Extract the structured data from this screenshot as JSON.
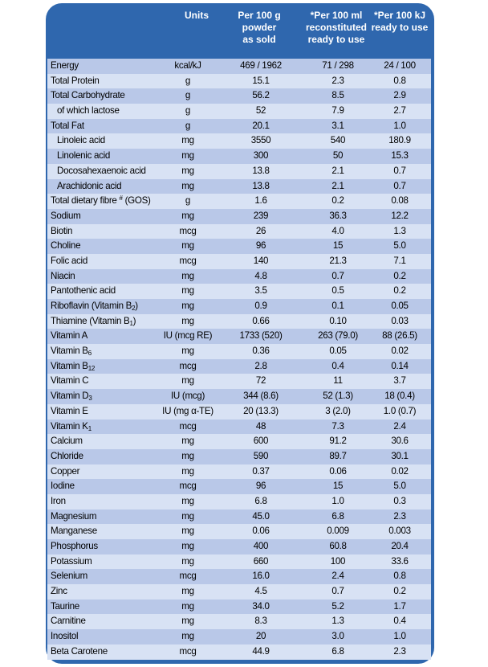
{
  "header": {
    "units": "Units",
    "col1": "Per 100 g\npowder\nas sold",
    "col2": "*Per 100 ml\nreconstituted\nready to use",
    "col3": "*Per 100 kJ\nready to use"
  },
  "rows": [
    {
      "name": "Energy",
      "unit": "kcal/kJ",
      "v1": "469 / 1962",
      "v2": "71 / 298",
      "v3": "24 / 100"
    },
    {
      "name": "Total Protein",
      "unit": "g",
      "v1": "15.1",
      "v2": "2.3",
      "v3": "0.8"
    },
    {
      "name": "Total Carbohydrate",
      "unit": "g",
      "v1": "56.2",
      "v2": "8.5",
      "v3": "2.9"
    },
    {
      "name": "of which lactose",
      "unit": "g",
      "v1": "52",
      "v2": "7.9",
      "v3": "2.7",
      "indent": true
    },
    {
      "name": "Total Fat",
      "unit": "g",
      "v1": "20.1",
      "v2": "3.1",
      "v3": "1.0"
    },
    {
      "name": "Linoleic acid",
      "unit": "mg",
      "v1": "3550",
      "v2": "540",
      "v3": "180.9",
      "indent": true
    },
    {
      "name": "Linolenic acid",
      "unit": "mg",
      "v1": "300",
      "v2": "50",
      "v3": "15.3",
      "indent": true
    },
    {
      "name": "Docosahexaenoic acid",
      "unit": "mg",
      "v1": "13.8",
      "v2": "2.1",
      "v3": "0.7",
      "indent": true
    },
    {
      "name": "Arachidonic acid",
      "unit": "mg",
      "v1": "13.8",
      "v2": "2.1",
      "v3": "0.7",
      "indent": true
    },
    {
      "name": "Total dietary fibre # (GOS)",
      "unit": "g",
      "v1": "1.6",
      "v2": "0.2",
      "v3": "0.08",
      "sup": "#"
    },
    {
      "name": "Sodium",
      "unit": "mg",
      "v1": "239",
      "v2": "36.3",
      "v3": "12.2"
    },
    {
      "name": "Biotin",
      "unit": "mcg",
      "v1": "26",
      "v2": "4.0",
      "v3": "1.3"
    },
    {
      "name": "Choline",
      "unit": "mg",
      "v1": "96",
      "v2": "15",
      "v3": "5.0"
    },
    {
      "name": "Folic acid",
      "unit": "mcg",
      "v1": "140",
      "v2": "21.3",
      "v3": "7.1"
    },
    {
      "name": "Niacin",
      "unit": "mg",
      "v1": "4.8",
      "v2": "0.7",
      "v3": "0.2"
    },
    {
      "name": "Pantothenic acid",
      "unit": "mg",
      "v1": "3.5",
      "v2": "0.5",
      "v3": "0.2"
    },
    {
      "name": "Riboflavin (Vitamin B2)",
      "unit": "mg",
      "v1": "0.9",
      "v2": "0.1",
      "v3": "0.05",
      "base": "Riboflavin (Vitamin B",
      "sub": "2",
      "tail": ")"
    },
    {
      "name": "Thiamine (Vitamin B1)",
      "unit": "mg",
      "v1": "0.66",
      "v2": "0.10",
      "v3": "0.03",
      "base": "Thiamine (Vitamin B",
      "sub": "1",
      "tail": ")"
    },
    {
      "name": "Vitamin A",
      "unit": "IU (mcg RE)",
      "v1": "1733 (520)",
      "v2": "263 (79.0)",
      "v3": "88 (26.5)"
    },
    {
      "name": "Vitamin B6",
      "unit": "mg",
      "v1": "0.36",
      "v2": "0.05",
      "v3": "0.02",
      "base": "Vitamin B",
      "sub": "6",
      "tail": ""
    },
    {
      "name": "Vitamin B12",
      "unit": "mcg",
      "v1": "2.8",
      "v2": "0.4",
      "v3": "0.14",
      "base": "Vitamin B",
      "sub": "12",
      "tail": ""
    },
    {
      "name": "Vitamin C",
      "unit": "mg",
      "v1": "72",
      "v2": "11",
      "v3": "3.7"
    },
    {
      "name": "Vitamin D3",
      "unit": "IU (mcg)",
      "v1": "344 (8.6)",
      "v2": "52 (1.3)",
      "v3": "18 (0.4)",
      "base": "Vitamin D",
      "sub": "3",
      "tail": ""
    },
    {
      "name": "Vitamin E",
      "unit": "IU (mg α-TE)",
      "v1": "20 (13.3)",
      "v2": "3 (2.0)",
      "v3": "1.0 (0.7)"
    },
    {
      "name": "Vitamin K1",
      "unit": "mcg",
      "v1": "48",
      "v2": "7.3",
      "v3": "2.4",
      "base": "Vitamin K",
      "sub": "1",
      "tail": ""
    },
    {
      "name": "Calcium",
      "unit": "mg",
      "v1": "600",
      "v2": "91.2",
      "v3": "30.6"
    },
    {
      "name": "Chloride",
      "unit": "mg",
      "v1": "590",
      "v2": "89.7",
      "v3": "30.1"
    },
    {
      "name": "Copper",
      "unit": "mg",
      "v1": "0.37",
      "v2": "0.06",
      "v3": "0.02"
    },
    {
      "name": "Iodine",
      "unit": "mcg",
      "v1": "96",
      "v2": "15",
      "v3": "5.0"
    },
    {
      "name": "Iron",
      "unit": "mg",
      "v1": "6.8",
      "v2": "1.0",
      "v3": "0.3"
    },
    {
      "name": "Magnesium",
      "unit": "mg",
      "v1": "45.0",
      "v2": "6.8",
      "v3": "2.3"
    },
    {
      "name": "Manganese",
      "unit": "mg",
      "v1": "0.06",
      "v2": "0.009",
      "v3": "0.003"
    },
    {
      "name": "Phosphorus",
      "unit": "mg",
      "v1": "400",
      "v2": "60.8",
      "v3": "20.4"
    },
    {
      "name": "Potassium",
      "unit": "mg",
      "v1": "660",
      "v2": "100",
      "v3": "33.6"
    },
    {
      "name": "Selenium",
      "unit": "mcg",
      "v1": "16.0",
      "v2": "2.4",
      "v3": "0.8"
    },
    {
      "name": "Zinc",
      "unit": "mg",
      "v1": "4.5",
      "v2": "0.7",
      "v3": "0.2"
    },
    {
      "name": "Taurine",
      "unit": "mg",
      "v1": "34.0",
      "v2": "5.2",
      "v3": "1.7"
    },
    {
      "name": "Carnitine",
      "unit": "mg",
      "v1": "8.3",
      "v2": "1.3",
      "v3": "0.4"
    },
    {
      "name": "Inositol",
      "unit": "mg",
      "v1": "20",
      "v2": "3.0",
      "v3": "1.0"
    },
    {
      "name": "Beta Carotene",
      "unit": "mcg",
      "v1": "44.9",
      "v2": "6.8",
      "v3": "2.3"
    }
  ],
  "colors": {
    "panel": "#2f67ae",
    "row_odd": "#b9c8e8",
    "row_even": "#d8e2f4",
    "header_text": "#ffffff"
  }
}
